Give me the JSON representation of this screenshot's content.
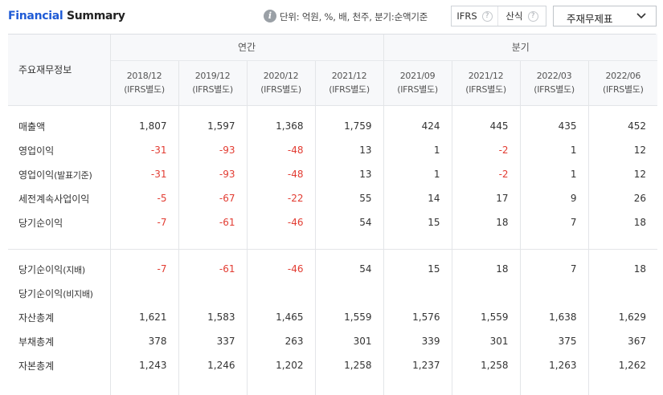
{
  "header": {
    "title_part1": "Financial",
    "title_part2": "Summary",
    "unit_text": "단위: 억원, %, 배, 천주, 분기:순액기준",
    "ifrs_label": "IFRS",
    "sansik_label": "산식",
    "select_value": "주재무제표"
  },
  "table": {
    "corner_label": "주요재무정보",
    "annual_label": "연간",
    "quarter_label": "분기",
    "periods": [
      {
        "date": "2018/12",
        "std": "(IFRS별도)"
      },
      {
        "date": "2019/12",
        "std": "(IFRS별도)"
      },
      {
        "date": "2020/12",
        "std": "(IFRS별도)"
      },
      {
        "date": "2021/12",
        "std": "(IFRS별도)"
      },
      {
        "date": "2021/09",
        "std": "(IFRS별도)"
      },
      {
        "date": "2021/12",
        "std": "(IFRS별도)"
      },
      {
        "date": "2022/03",
        "std": "(IFRS별도)"
      },
      {
        "date": "2022/06",
        "std": "(IFRS별도)"
      }
    ],
    "rows": [
      {
        "label": "매출액",
        "sub": "",
        "values": [
          "1,807",
          "1,597",
          "1,368",
          "1,759",
          "424",
          "445",
          "435",
          "452"
        ]
      },
      {
        "label": "영업이익",
        "sub": "",
        "values": [
          "-31",
          "-93",
          "-48",
          "13",
          "1",
          "-2",
          "1",
          "12"
        ]
      },
      {
        "label": "영업이익",
        "sub": "(발표기준)",
        "values": [
          "-31",
          "-93",
          "-48",
          "13",
          "1",
          "-2",
          "1",
          "12"
        ]
      },
      {
        "label": "세전계속사업이익",
        "sub": "",
        "values": [
          "-5",
          "-67",
          "-22",
          "55",
          "14",
          "17",
          "9",
          "26"
        ]
      },
      {
        "label": "당기순이익",
        "sub": "",
        "values": [
          "-7",
          "-61",
          "-46",
          "54",
          "15",
          "18",
          "7",
          "18"
        ]
      },
      {
        "label": "당기순이익",
        "sub": "(지배)",
        "values": [
          "-7",
          "-61",
          "-46",
          "54",
          "15",
          "18",
          "7",
          "18"
        ]
      },
      {
        "label": "당기순이익",
        "sub": "(비지배)",
        "values": [
          "",
          "",
          "",
          "",
          "",
          "",
          "",
          ""
        ]
      },
      {
        "label": "자산총계",
        "sub": "",
        "values": [
          "1,621",
          "1,583",
          "1,465",
          "1,559",
          "1,576",
          "1,559",
          "1,638",
          "1,629"
        ]
      },
      {
        "label": "부채총계",
        "sub": "",
        "values": [
          "378",
          "337",
          "263",
          "301",
          "339",
          "301",
          "375",
          "367"
        ]
      },
      {
        "label": "자본총계",
        "sub": "",
        "values": [
          "1,243",
          "1,246",
          "1,202",
          "1,258",
          "1,237",
          "1,258",
          "1,263",
          "1,262"
        ]
      }
    ]
  },
  "colors": {
    "brand_blue": "#1f5bd6",
    "negative_red": "#e23c32",
    "header_bg": "#f7f8fa",
    "border": "#e3e5e8"
  }
}
